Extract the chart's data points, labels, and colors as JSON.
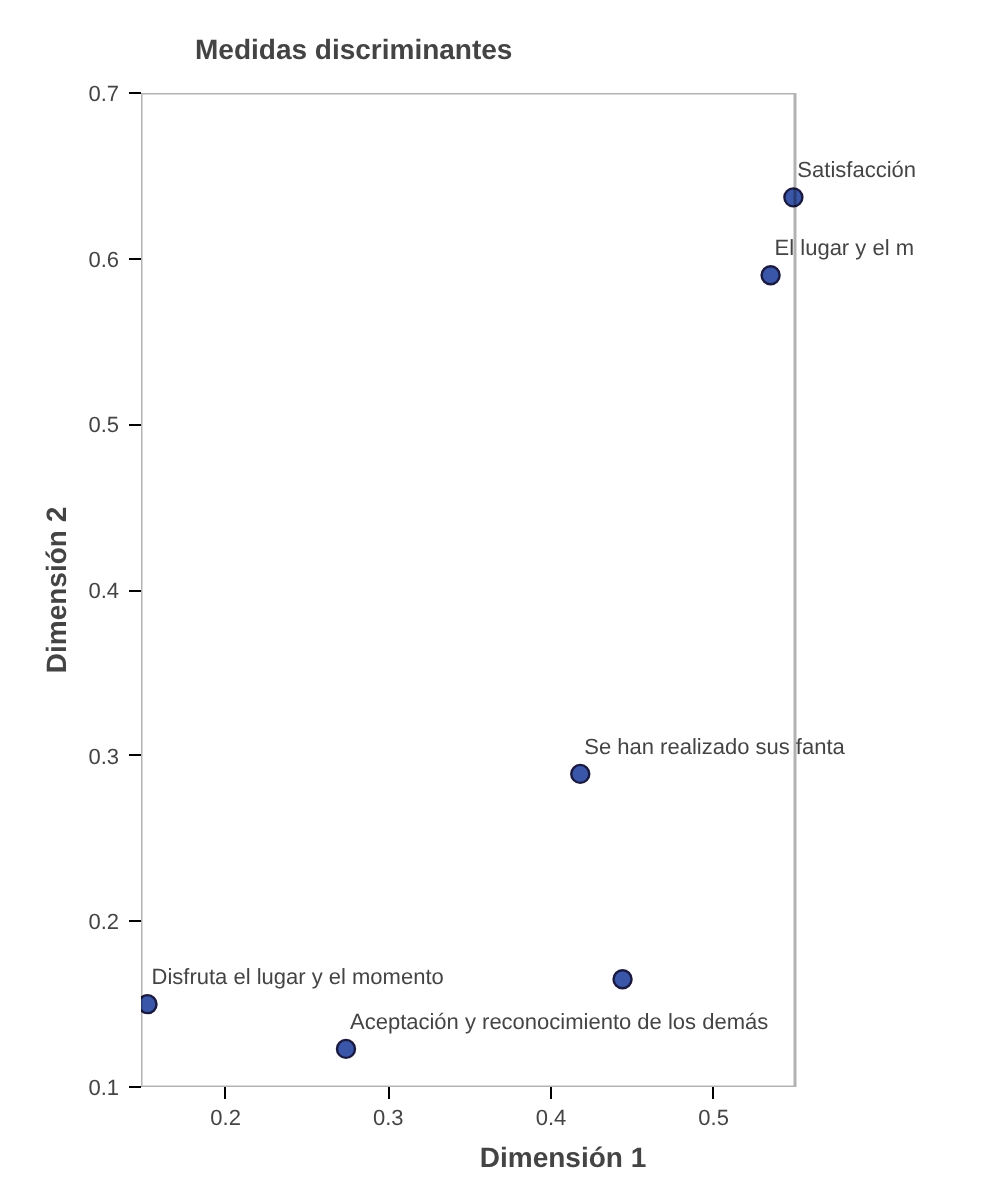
{
  "chart_data": {
    "type": "scatter",
    "title": "Medidas discriminantes",
    "xlabel": "Dimensión 1",
    "ylabel": "Dimensión 2",
    "x": [
      0.549,
      0.535,
      0.418,
      0.444,
      0.152,
      0.274
    ],
    "series": [
      {
        "color": "#3a56a8",
        "values": [
          0.637,
          0.59,
          0.289,
          0.165,
          0.15,
          0.123
        ]
      }
    ],
    "xlim": [
      0.148,
      0.55
    ],
    "ylim": [
      0.1,
      0.7
    ],
    "xticks": [
      0.2,
      0.3,
      0.4,
      0.5
    ],
    "yticks": [
      0.1,
      0.2,
      0.3,
      0.4,
      0.5,
      0.6,
      0.7
    ],
    "grid": false,
    "marker": "circle",
    "annotations": [
      {
        "text": "Satisfacción",
        "x": 0.549,
        "y": 0.637
      },
      {
        "text": "El lugar y el m",
        "x": 0.535,
        "y": 0.59
      },
      {
        "text": "Se han realizado sus fanta",
        "x": 0.418,
        "y": 0.289
      },
      {
        "text": "Disfruta el lugar y el momento",
        "x": 0.152,
        "y": 0.15
      },
      {
        "text": "Aceptación y reconocimiento de los demás",
        "x": 0.274,
        "y": 0.123
      }
    ]
  }
}
